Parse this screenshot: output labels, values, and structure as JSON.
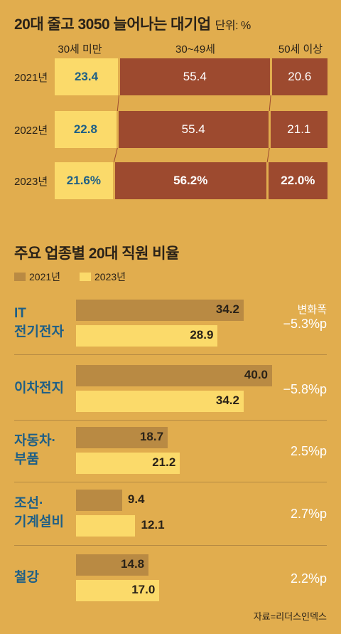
{
  "top": {
    "title": "20대 줄고 3050 늘어나는 대기업",
    "unit": "단위: %",
    "col_headers": [
      "30세 미만",
      "30~49세",
      "50세 이상"
    ]
  },
  "bottom": {
    "title": "주요 업종별 20대 직원 비율",
    "change_title": "변화폭"
  },
  "source": "자료=리더스인덱스",
  "colors": {
    "background": "#E1AD4E",
    "under30": "#FBDA6A",
    "mid": "#9D4A2F",
    "bar2021": "#B98A43",
    "bar2023": "#FBDA6A",
    "label_blue": "#1e5f86"
  },
  "chart_data": [
    {
      "type": "bar",
      "stacked": true,
      "orientation": "horizontal",
      "title": "20대 줄고 3050 늘어나는 대기업",
      "unit": "단위: %",
      "categories": [
        "2021년",
        "2022년",
        "2023년"
      ],
      "series": [
        {
          "name": "30세 미만",
          "values": [
            23.4,
            22.8,
            21.6
          ],
          "labels": [
            "23.4",
            "22.8",
            "21.6%"
          ]
        },
        {
          "name": "30~49세",
          "values": [
            55.4,
            55.4,
            56.2
          ],
          "labels": [
            "55.4",
            "55.4",
            "56.2%"
          ]
        },
        {
          "name": "50세 이상",
          "values": [
            20.6,
            21.1,
            22.0
          ],
          "labels": [
            "20.6",
            "21.1",
            "22.0%"
          ]
        }
      ]
    },
    {
      "type": "bar",
      "orientation": "horizontal",
      "title": "주요 업종별 20대 직원 비율",
      "categories": [
        {
          "lines": [
            "IT",
            "전기전자"
          ],
          "change": "−5.3%p"
        },
        {
          "lines": [
            "이차전지"
          ],
          "change": "−5.8%p"
        },
        {
          "lines": [
            "자동차·",
            "부품"
          ],
          "change": "2.5%p"
        },
        {
          "lines": [
            "조선·",
            "기계설비"
          ],
          "change": "2.7%p"
        },
        {
          "lines": [
            "철강"
          ],
          "change": "2.2%p"
        }
      ],
      "series": [
        {
          "name": "2021년",
          "values": [
            34.2,
            40.0,
            18.7,
            9.4,
            14.8
          ],
          "labels": [
            "34.2",
            "40.0",
            "18.7",
            "9.4",
            "14.8"
          ]
        },
        {
          "name": "2023년",
          "values": [
            28.9,
            34.2,
            21.2,
            12.1,
            17.0
          ],
          "labels": [
            "28.9",
            "34.2",
            "21.2",
            "12.1",
            "17.0"
          ]
        }
      ]
    }
  ]
}
